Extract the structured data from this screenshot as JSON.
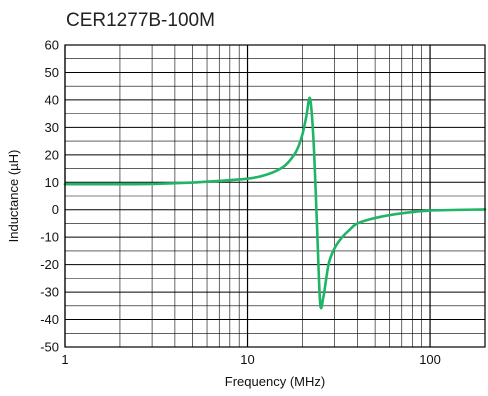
{
  "chart_data": {
    "type": "line",
    "title": "CER1277B-100M",
    "xlabel": "Frequency (MHz)",
    "ylabel": "Inductance (µH)",
    "xscale": "log",
    "xlim": [
      1,
      200
    ],
    "ylim": [
      -50,
      60
    ],
    "xticks": [
      1,
      10,
      100
    ],
    "xtick_labels": [
      "1",
      "10",
      "100"
    ],
    "yticks": [
      -50,
      -40,
      -30,
      -20,
      -10,
      0,
      10,
      20,
      30,
      40,
      50,
      60
    ],
    "ytick_labels": [
      "-50",
      "-40",
      "-30",
      "-20",
      "-10",
      "0",
      "10",
      "20",
      "30",
      "40",
      "50",
      "60"
    ],
    "grid": true,
    "series": [
      {
        "color": "#1fb566",
        "x": [
          1,
          2,
          3,
          5,
          7,
          10,
          12,
          14,
          16,
          18,
          19,
          20,
          21,
          22,
          23,
          24,
          25,
          26,
          27,
          28,
          30,
          33,
          36,
          40,
          50,
          70,
          100,
          200
        ],
        "y": [
          9.3,
          9.3,
          9.4,
          9.9,
          10.5,
          11.3,
          12.3,
          13.8,
          16.0,
          20.0,
          23.0,
          27.5,
          34.0,
          40.5,
          25.0,
          -5.0,
          -34.0,
          -32.0,
          -25.0,
          -19.0,
          -14.0,
          -10.0,
          -7.5,
          -5.0,
          -3.0,
          -1.3,
          -0.3,
          0.1
        ]
      }
    ]
  }
}
